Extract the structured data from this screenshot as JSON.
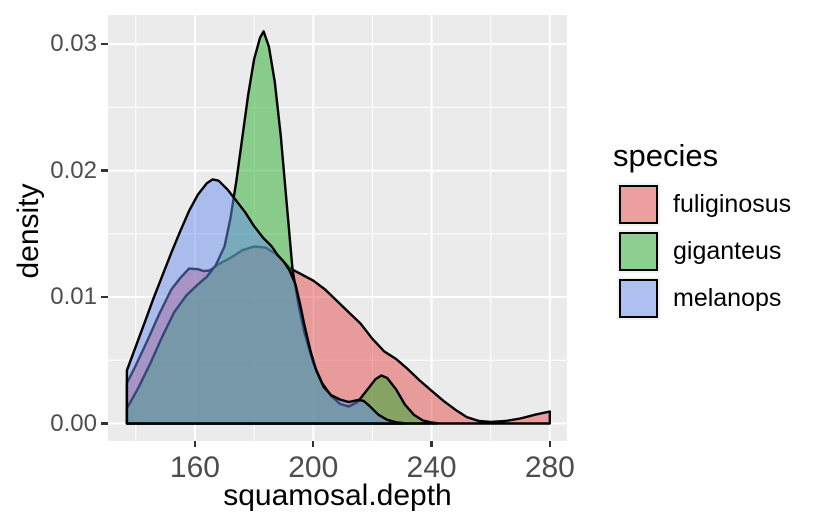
{
  "chart_data": {
    "type": "area",
    "subtype": "overlapping-density-ggplot",
    "xlabel": "squamosal.depth",
    "ylabel": "density",
    "x_tick_labels": [
      "160",
      "200",
      "240",
      "280"
    ],
    "x_tick_values": [
      160,
      200,
      240,
      280
    ],
    "x_minor_values": [
      140,
      180,
      220,
      260
    ],
    "y_tick_labels": [
      "0.00",
      "0.01",
      "0.02",
      "0.03"
    ],
    "y_tick_values": [
      0,
      0.01,
      0.02,
      0.03
    ],
    "y_minor_values": [
      0.005,
      0.015,
      0.025
    ],
    "x_panel_range": [
      130.6,
      285.8
    ],
    "y_panel_range": [
      -0.00138,
      0.0323
    ],
    "grid": "white major and minor on grey panel",
    "legend_position": "right",
    "fill_alpha": 0.5,
    "stroke_color": "#000000",
    "series": [
      {
        "name": "fuliginosus",
        "color": "#E34B4B",
        "x": [
          137,
          140,
          144,
          148,
          152,
          155,
          158,
          161,
          163,
          165,
          168,
          172,
          176,
          180,
          184,
          188,
          192,
          196,
          200,
          204,
          208,
          212,
          216,
          220,
          224,
          228,
          232,
          236,
          240,
          244,
          248,
          252,
          256,
          260,
          265,
          270,
          275,
          280
        ],
        "density": [
          0.0032,
          0.0046,
          0.0066,
          0.0087,
          0.0106,
          0.0115,
          0.01225,
          0.0122,
          0.01205,
          0.0121,
          0.0126,
          0.0131,
          0.0137,
          0.014,
          0.0139,
          0.0133,
          0.0123,
          0.0118,
          0.0113,
          0.0106,
          0.0097,
          0.0088,
          0.0079,
          0.0067,
          0.0057,
          0.0051,
          0.0043,
          0.0034,
          0.0026,
          0.0018,
          0.0011,
          0.0005,
          0.0002,
          0.00013,
          0.0002,
          0.0004,
          0.0007,
          0.00095
        ]
      },
      {
        "name": "giganteus",
        "color": "#25AB2B",
        "x": [
          137,
          141,
          145,
          149,
          153,
          157,
          161,
          164,
          167,
          170,
          172,
          174,
          176,
          178,
          180,
          182,
          183.2,
          185,
          187,
          189,
          191,
          193,
          195,
          197,
          200,
          203,
          206,
          209,
          212,
          215,
          218,
          221,
          223,
          225,
          228,
          231,
          234,
          237,
          240,
          242
        ],
        "density": [
          0.0012,
          0.0029,
          0.0048,
          0.0069,
          0.0088,
          0.0101,
          0.011,
          0.0116,
          0.0125,
          0.014,
          0.0162,
          0.0192,
          0.0226,
          0.026,
          0.0288,
          0.0305,
          0.031,
          0.0298,
          0.027,
          0.0228,
          0.0175,
          0.0122,
          0.0094,
          0.0072,
          0.0048,
          0.0032,
          0.0022,
          0.00155,
          0.00135,
          0.0017,
          0.0026,
          0.0035,
          0.0038,
          0.0036,
          0.0027,
          0.0015,
          0.0007,
          0.00025,
          8e-05,
          2e-05
        ]
      },
      {
        "name": "melanops",
        "color": "#678DED",
        "x": [
          137,
          140,
          143,
          146,
          149,
          152,
          155,
          158,
          161,
          164,
          166,
          168,
          171,
          174,
          177,
          180,
          183,
          186,
          188,
          190,
          192,
          194,
          195.5,
          197,
          199,
          201,
          203.5,
          206,
          209,
          212,
          215,
          217,
          219,
          222,
          225,
          228,
          231
        ],
        "density": [
          0.0042,
          0.0061,
          0.008,
          0.0099,
          0.0117,
          0.0135,
          0.0152,
          0.0168,
          0.0181,
          0.019,
          0.0193,
          0.0192,
          0.0185,
          0.0176,
          0.0167,
          0.0156,
          0.0147,
          0.014,
          0.0133,
          0.0128,
          0.0121,
          0.011,
          0.0095,
          0.0078,
          0.0058,
          0.0042,
          0.0029,
          0.00225,
          0.0019,
          0.0017,
          0.00185,
          0.0018,
          0.0014,
          0.0007,
          0.0003,
          0.0001,
          2e-05
        ]
      }
    ]
  },
  "axes": {
    "x_title": "squamosal.depth",
    "y_title": "density"
  },
  "legend": {
    "title": "species",
    "items": [
      {
        "label": "fuliginosus",
        "color": "#E34B4B"
      },
      {
        "label": "giganteus",
        "color": "#25AB2B"
      },
      {
        "label": "melanops",
        "color": "#678DED"
      }
    ]
  },
  "colors": {
    "panel_bg": "#EBEBEB",
    "grid": "#FFFFFF",
    "tick_label": "#4D4D4D",
    "tick_mark": "#333333",
    "axis_title": "#000000",
    "outline": "#000000",
    "legend_key_bg": "#F2F2F2"
  }
}
